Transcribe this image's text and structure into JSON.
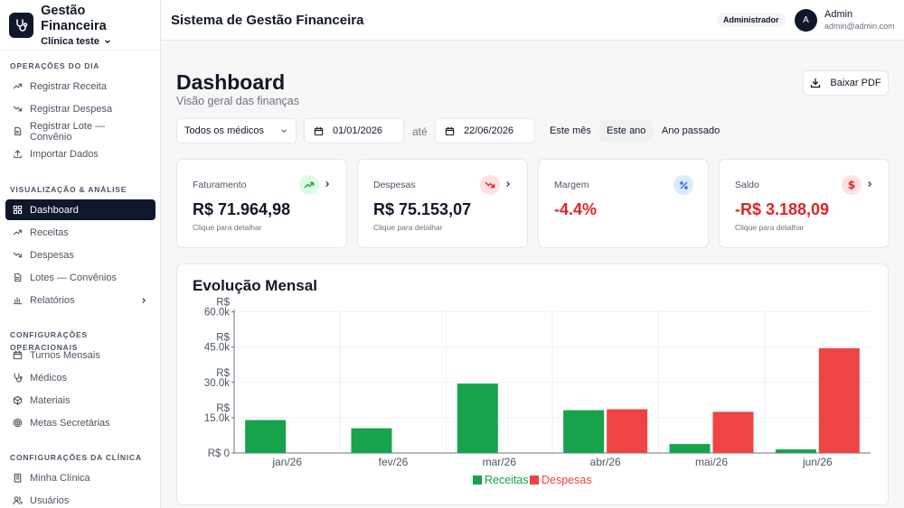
{
  "sidebar": {
    "brand_title": "Gestão Financeira",
    "brand_sub": "Clínica teste",
    "sections": [
      {
        "title": "OPERAÇÕES DO DIA",
        "items": [
          {
            "label": "Registrar Receita",
            "icon": "trend-up-icon"
          },
          {
            "label": "Registrar Despesa",
            "icon": "trend-down-icon"
          },
          {
            "label": "Registrar Lote — Convênio",
            "icon": "document-icon"
          },
          {
            "label": "Importar Dados",
            "icon": "upload-icon"
          }
        ]
      },
      {
        "title": "VISUALIZAÇÃO & ANÁLISE",
        "items": [
          {
            "label": "Dashboard",
            "icon": "dashboard-icon",
            "active": true
          },
          {
            "label": "Receitas",
            "icon": "trend-up-icon"
          },
          {
            "label": "Despesas",
            "icon": "trend-down-icon"
          },
          {
            "label": "Lotes — Convênios",
            "icon": "document-icon"
          },
          {
            "label": "Relatórios",
            "icon": "bar-chart-icon"
          }
        ]
      },
      {
        "title": "CONFIGURAÇÕES OPERACIONAIS",
        "items": [
          {
            "label": "Turnos Mensais",
            "icon": "calendar-icon"
          },
          {
            "label": "Médicos",
            "icon": "stethoscope-icon"
          },
          {
            "label": "Materiais",
            "icon": "box-icon"
          },
          {
            "label": "Metas Secretárias",
            "icon": "target-icon"
          }
        ]
      },
      {
        "title": "CONFIGURAÇÕES DA CLÍNICA",
        "items": [
          {
            "label": "Minha Clínica",
            "icon": "building-icon"
          },
          {
            "label": "Usuários",
            "icon": "users-icon"
          }
        ]
      }
    ]
  },
  "header": {
    "title": "Sistema de Gestão Financeira",
    "role": "Administrador",
    "avatar_letter": "A",
    "user_name": "Admin",
    "user_email": "admin@admin.com"
  },
  "main": {
    "title": "Dashboard",
    "subtitle": "Visão geral das finanças",
    "pdf_label": "Baixar PDF",
    "doctor_select": "Todos os médicos",
    "date_from": "01/01/2026",
    "date_sep": "até",
    "date_to": "22/06/2026",
    "quick_filters": [
      "Este mês",
      "Este ano",
      "Ano passado"
    ],
    "quick_selected": "Este ano"
  },
  "cards": [
    {
      "label": "Faturamento",
      "value": "R$ 71.964,98",
      "hint": "Clique para detalhar",
      "icon": "trend-up-icon",
      "color": "#16a34a",
      "icon_bg": "#dcfce7"
    },
    {
      "label": "Despesas",
      "value": "R$ 75.153,07",
      "hint": "Clique para detalhar",
      "icon": "trend-down-icon",
      "color": "#dc2626",
      "icon_bg": "#fee2e2"
    },
    {
      "label": "Margem",
      "value": "-4.4%",
      "hint": "",
      "icon": "percent-icon",
      "color": "#dc2626",
      "icon_bg": "#dbeafe",
      "icon_color": "#2563eb"
    },
    {
      "label": "Saldo",
      "value": "-R$ 3.188,09",
      "hint": "Clique para detalhar",
      "icon": "dollar-icon",
      "color": "#dc2626",
      "icon_bg": "#fee2e2"
    }
  ],
  "chart_data": {
    "type": "bar",
    "title": "Evolução Mensal",
    "categories": [
      "jan/26",
      "fev/26",
      "mar/26",
      "abr/26",
      "mai/26",
      "jun/26"
    ],
    "series": [
      {
        "name": "Receitas",
        "color": "#16a34a",
        "values": [
          14000,
          10500,
          29500,
          18200,
          3800,
          1500
        ]
      },
      {
        "name": "Despesas",
        "color": "#ef4444",
        "values": [
          0,
          0,
          0,
          18600,
          17500,
          44500
        ]
      }
    ],
    "yticks": [
      {
        "value": 0,
        "label": "R$ 0"
      },
      {
        "value": 15000,
        "label": "R$ 15.0k"
      },
      {
        "value": 30000,
        "label": "R$ 30.0k"
      },
      {
        "value": 45000,
        "label": "R$ 45.0k"
      },
      {
        "value": 60000,
        "label": "R$ 60.0k"
      }
    ],
    "ylim": [
      0,
      61000
    ],
    "grid": true,
    "legend": "bottom-center"
  }
}
